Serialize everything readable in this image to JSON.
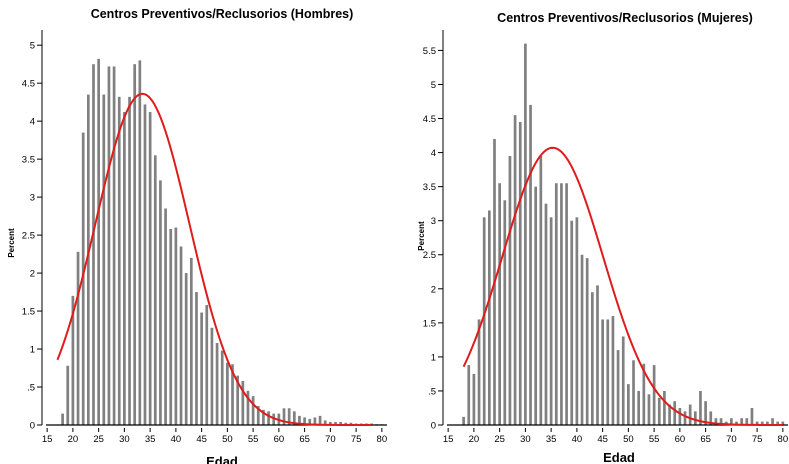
{
  "chart_data": [
    {
      "type": "bar",
      "title": "Centros Preventivos/Reclusorios (Hombres)",
      "xlabel": "Edad",
      "ylabel": "Percent",
      "xlim": [
        14,
        81
      ],
      "ylim": [
        0,
        5.2
      ],
      "xticks": [
        15,
        20,
        25,
        30,
        35,
        40,
        45,
        50,
        55,
        60,
        65,
        70,
        75,
        80
      ],
      "yticks": [
        0,
        0.5,
        1,
        1.5,
        2,
        2.5,
        3,
        3.5,
        4,
        4.5,
        5
      ],
      "ytick_labels": [
        "0",
        ".5",
        "1",
        "1.5",
        "2",
        "2.5",
        "3",
        "3.5",
        "4",
        "4.5",
        "5"
      ],
      "grid": false,
      "bar_color": "#808080",
      "curve_color": "#e01b1b",
      "x": [
        18,
        19,
        20,
        21,
        22,
        23,
        24,
        25,
        26,
        27,
        28,
        29,
        30,
        31,
        32,
        33,
        34,
        35,
        36,
        37,
        38,
        39,
        40,
        41,
        42,
        43,
        44,
        45,
        46,
        47,
        48,
        49,
        50,
        51,
        52,
        53,
        54,
        55,
        56,
        57,
        58,
        59,
        60,
        61,
        62,
        63,
        64,
        65,
        66,
        67,
        68,
        69,
        70,
        71,
        72,
        73,
        74,
        75,
        76,
        77,
        78,
        79,
        80
      ],
      "values": [
        0.15,
        0.78,
        1.7,
        2.28,
        3.85,
        4.35,
        4.75,
        4.82,
        4.35,
        4.72,
        4.72,
        4.32,
        4.12,
        4.32,
        4.75,
        4.8,
        4.22,
        4.12,
        3.55,
        3.22,
        2.85,
        2.58,
        2.6,
        2.35,
        2.0,
        2.2,
        1.75,
        1.48,
        1.58,
        1.28,
        1.08,
        0.98,
        0.82,
        0.8,
        0.65,
        0.58,
        0.45,
        0.38,
        0.25,
        0.2,
        0.18,
        0.15,
        0.15,
        0.22,
        0.22,
        0.18,
        0.12,
        0.1,
        0.08,
        0.1,
        0.12,
        0.06,
        0.04,
        0.04,
        0.04,
        0.03,
        0.03,
        0.02,
        0.02,
        0.02,
        0.02,
        0.01,
        0.01
      ],
      "normal_curve": {
        "mean": 33.5,
        "sd": 9.15,
        "x_range": [
          17,
          78
        ]
      }
    },
    {
      "type": "bar",
      "title": "Centros Preventivos/Reclusorios (Mujeres)",
      "xlabel": "Edad",
      "ylabel": "Percent",
      "xlim": [
        14,
        81
      ],
      "ylim": [
        0,
        5.8
      ],
      "xticks": [
        15,
        20,
        25,
        30,
        35,
        40,
        45,
        50,
        55,
        60,
        65,
        70,
        75,
        80
      ],
      "yticks": [
        0,
        0.5,
        1,
        1.5,
        2,
        2.5,
        3,
        3.5,
        4,
        4.5,
        5,
        5.5
      ],
      "ytick_labels": [
        "0",
        ".5",
        "1",
        "1.5",
        "2",
        "2.5",
        "3",
        "3.5",
        "4",
        "4.5",
        "5",
        "5.5"
      ],
      "grid": false,
      "bar_color": "#808080",
      "curve_color": "#e01b1b",
      "x": [
        18,
        19,
        20,
        21,
        22,
        23,
        24,
        25,
        26,
        27,
        28,
        29,
        30,
        31,
        32,
        33,
        34,
        35,
        36,
        37,
        38,
        39,
        40,
        41,
        42,
        43,
        44,
        45,
        46,
        47,
        48,
        49,
        50,
        51,
        52,
        53,
        54,
        55,
        56,
        57,
        58,
        59,
        60,
        61,
        62,
        63,
        64,
        65,
        66,
        67,
        68,
        69,
        70,
        71,
        72,
        73,
        74,
        75,
        76,
        77,
        78,
        79,
        80
      ],
      "values": [
        0.12,
        0.88,
        0.75,
        1.55,
        3.05,
        3.15,
        4.2,
        3.55,
        3.3,
        3.95,
        4.55,
        4.45,
        5.6,
        4.7,
        3.5,
        3.95,
        3.25,
        3.05,
        3.55,
        3.55,
        3.55,
        3.0,
        3.05,
        2.5,
        2.45,
        1.95,
        2.05,
        1.55,
        1.55,
        1.6,
        1.1,
        1.3,
        0.6,
        0.95,
        0.5,
        0.9,
        0.45,
        0.88,
        0.4,
        0.5,
        0.3,
        0.35,
        0.25,
        0.2,
        0.3,
        0.2,
        0.5,
        0.35,
        0.2,
        0.1,
        0.1,
        0.05,
        0.1,
        0.05,
        0.1,
        0.1,
        0.25,
        0.05,
        0.05,
        0.05,
        0.1,
        0.05,
        0.05
      ],
      "normal_curve": {
        "mean": 35.3,
        "sd": 9.8,
        "x_range": [
          18,
          80
        ]
      }
    }
  ]
}
